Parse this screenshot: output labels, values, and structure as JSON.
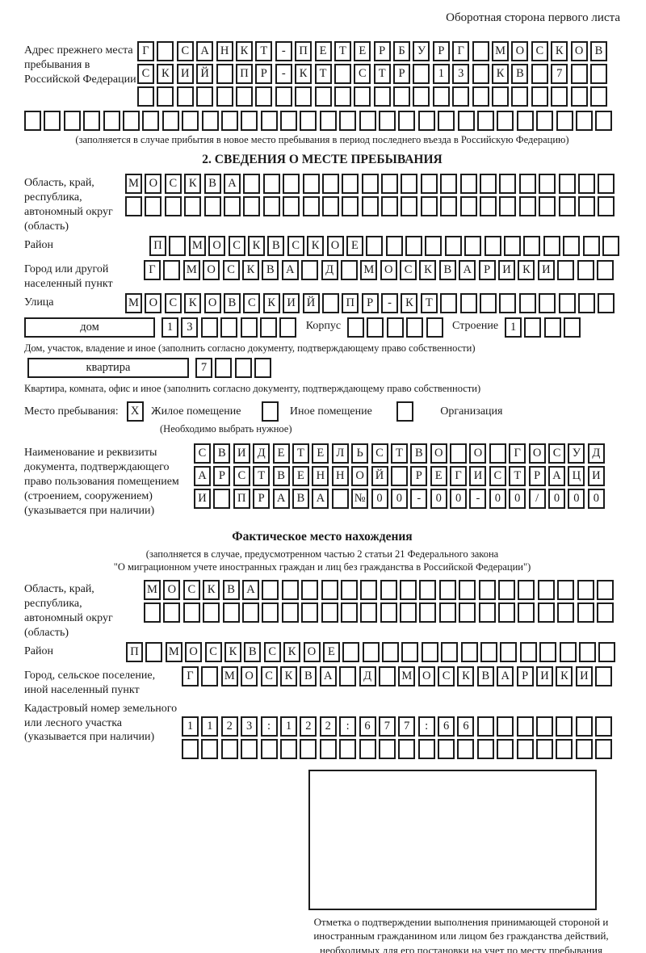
{
  "page": {
    "header_note": "Оборотная сторона первого листа"
  },
  "prev_address": {
    "label": "Адрес прежнего места пребывания в Российской Федерации",
    "rows": [
      {
        "text": "Г САНКТ-ПЕТЕРБУРГ МОСКОВ",
        "len": 24
      },
      {
        "text": "СКИЙ ПР-КТ СТР 13 КВ 7",
        "len": 24
      },
      {
        "text": "",
        "len": 24
      }
    ],
    "full_row": {
      "text": "",
      "len": 30
    },
    "caption": "(заполняется в случае прибытия в новое место пребывания в период последнего въезда в Российскую Федерацию)"
  },
  "section2": {
    "title": "2. СВЕДЕНИЯ О МЕСТЕ ПРЕБЫВАНИЯ",
    "region": {
      "label": "Область, край, республика, автономный округ (область)",
      "rows": [
        {
          "text": "МОСКВА",
          "len": 25
        },
        {
          "text": "",
          "len": 25
        }
      ]
    },
    "district": {
      "label": "Район",
      "row": {
        "text": "П МОСКВСКОЕ",
        "len": 24
      }
    },
    "city": {
      "label": "Город или другой населенный пункт",
      "row": {
        "text": "Г МОСКВА Д МОСКВАРИКИ",
        "len": 24
      }
    },
    "street": {
      "label": "Улица",
      "row": {
        "text": "МОСКОВСКИЙ ПР-КТ",
        "len": 25
      }
    },
    "house": {
      "box_label": "дом",
      "cells": {
        "text": "13",
        "len": 7
      },
      "korpus_label": "Корпус",
      "korpus_cells": {
        "text": "",
        "len": 5
      },
      "stroenie_label": "Строение",
      "stroenie_cells": {
        "text": "1",
        "len": 4
      }
    },
    "house_caption": "Дом, участок, владение и иное (заполнить согласно документу, подтверждающему право собственности)",
    "apartment": {
      "box_label": "квартира",
      "cells": {
        "text": "7",
        "len": 4
      }
    },
    "apartment_caption": "Квартира, комната, офис и иное (заполнить согласно документу, подтверждающему право собственности)",
    "stay_type": {
      "label": "Место пребывания:",
      "options": [
        {
          "label": "Жилое помещение",
          "cell": {
            "text": "X",
            "len": 1
          }
        },
        {
          "label": "Иное помещение",
          "cell": {
            "text": "",
            "len": 1
          }
        },
        {
          "label": "Организация",
          "cell": {
            "text": "",
            "len": 1
          }
        }
      ],
      "hint": "(Необходимо выбрать нужное)"
    },
    "document": {
      "label": "Наименование и реквизиты документа, подтверждающего право пользования помещением (строением, сооружением) (указывается при наличии)",
      "rows": [
        {
          "text": "СВИДЕТЕЛЬСТВО О ГОСУД",
          "len": 21
        },
        {
          "text": "АРСТВЕННОЙ РЕГИСТРАЦИ",
          "len": 21
        },
        {
          "text": "И ПРАВА №00-00-00/000",
          "len": 21
        }
      ]
    }
  },
  "actual_location": {
    "title": "Фактическое место нахождения",
    "caption_line1": "(заполняется в случае, предусмотренном частью 2 статьи 21 Федерального закона",
    "caption_line2": "\"О миграционном учете иностранных граждан и лиц без гражданства в Российской Федерации\")",
    "region": {
      "label": "Область, край, республика, автономный округ (область)",
      "rows": [
        {
          "text": "МОСКВА",
          "len": 24
        },
        {
          "text": "",
          "len": 24
        }
      ]
    },
    "district": {
      "label": "Район",
      "row": {
        "text": "П МОСКВСКОЕ",
        "len": 25
      }
    },
    "city": {
      "label": "Город, сельское поселение, иной населенный пункт",
      "row": {
        "text": "Г МОСКВА Д МОСКВАРИКИ",
        "len": 22
      }
    },
    "cadastral": {
      "label": "Кадастровый номер земельного или лесного участка (указывается при наличии)",
      "rows": [
        {
          "text": "1123:122:677:66",
          "len": 22
        },
        {
          "text": "",
          "len": 22
        }
      ]
    },
    "stamp_caption": "Отметка о подтверждении выполнения принимающей стороной и иностранным гражданином или лицом без гражданства действий, необходимых для его постановки на учет по месту пребывания"
  }
}
